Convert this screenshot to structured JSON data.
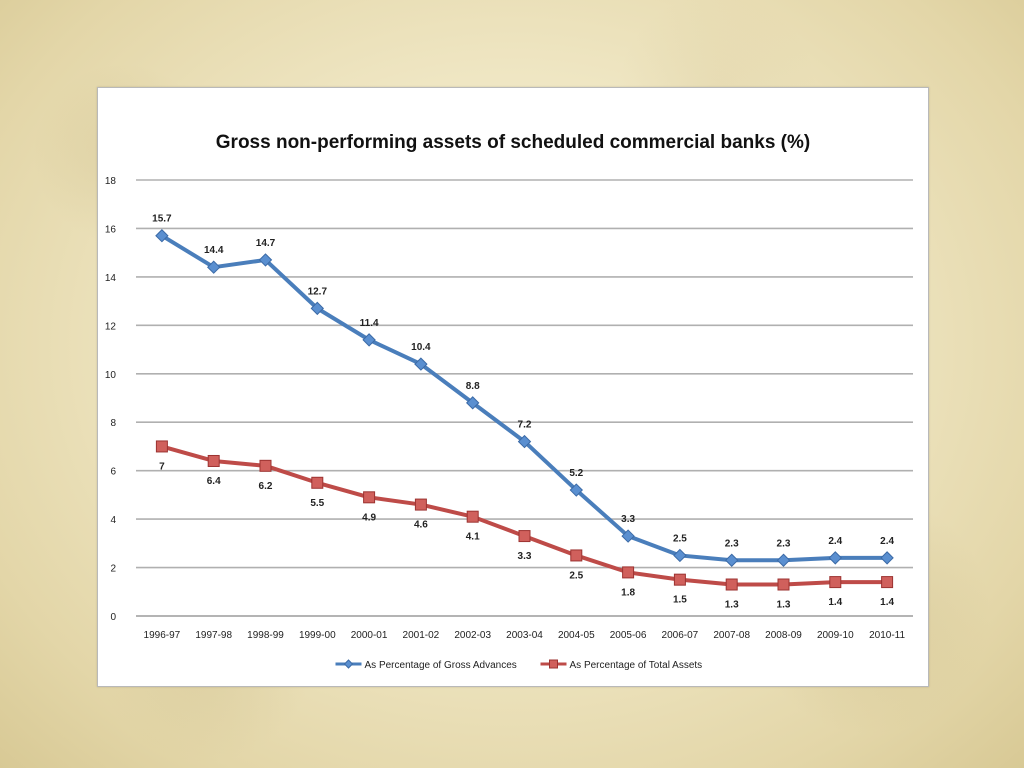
{
  "chart_data": {
    "type": "line",
    "title": "Gross non-performing assets of scheduled commercial banks (%)",
    "xlabel": "",
    "ylabel": "",
    "ylim": [
      0,
      18
    ],
    "yticks": [
      0,
      2,
      4,
      6,
      8,
      10,
      12,
      14,
      16,
      18
    ],
    "grid": true,
    "legend_position": "bottom",
    "categories": [
      "1996-97",
      "1997-98",
      "1998-99",
      "1999-00",
      "2000-01",
      "2001-02",
      "2002-03",
      "2003-04",
      "2004-05",
      "2005-06",
      "2006-07",
      "2007-08",
      "2008-09",
      "2009-10",
      "2010-11"
    ],
    "series": [
      {
        "name": "As Percentage of Gross Advances",
        "color": "#4a7ebb",
        "marker": "diamond",
        "label_position": "above",
        "values": [
          15.7,
          14.4,
          14.7,
          12.7,
          11.4,
          10.4,
          8.8,
          7.2,
          5.2,
          3.3,
          2.5,
          2.3,
          2.3,
          2.4,
          2.4
        ]
      },
      {
        "name": "As Percentage of Total Assets",
        "color": "#be4b48",
        "marker": "square",
        "label_position": "below",
        "values": [
          7,
          6.4,
          6.2,
          5.5,
          4.9,
          4.6,
          4.1,
          3.3,
          2.5,
          1.8,
          1.5,
          1.3,
          1.3,
          1.4,
          1.4
        ]
      }
    ]
  }
}
